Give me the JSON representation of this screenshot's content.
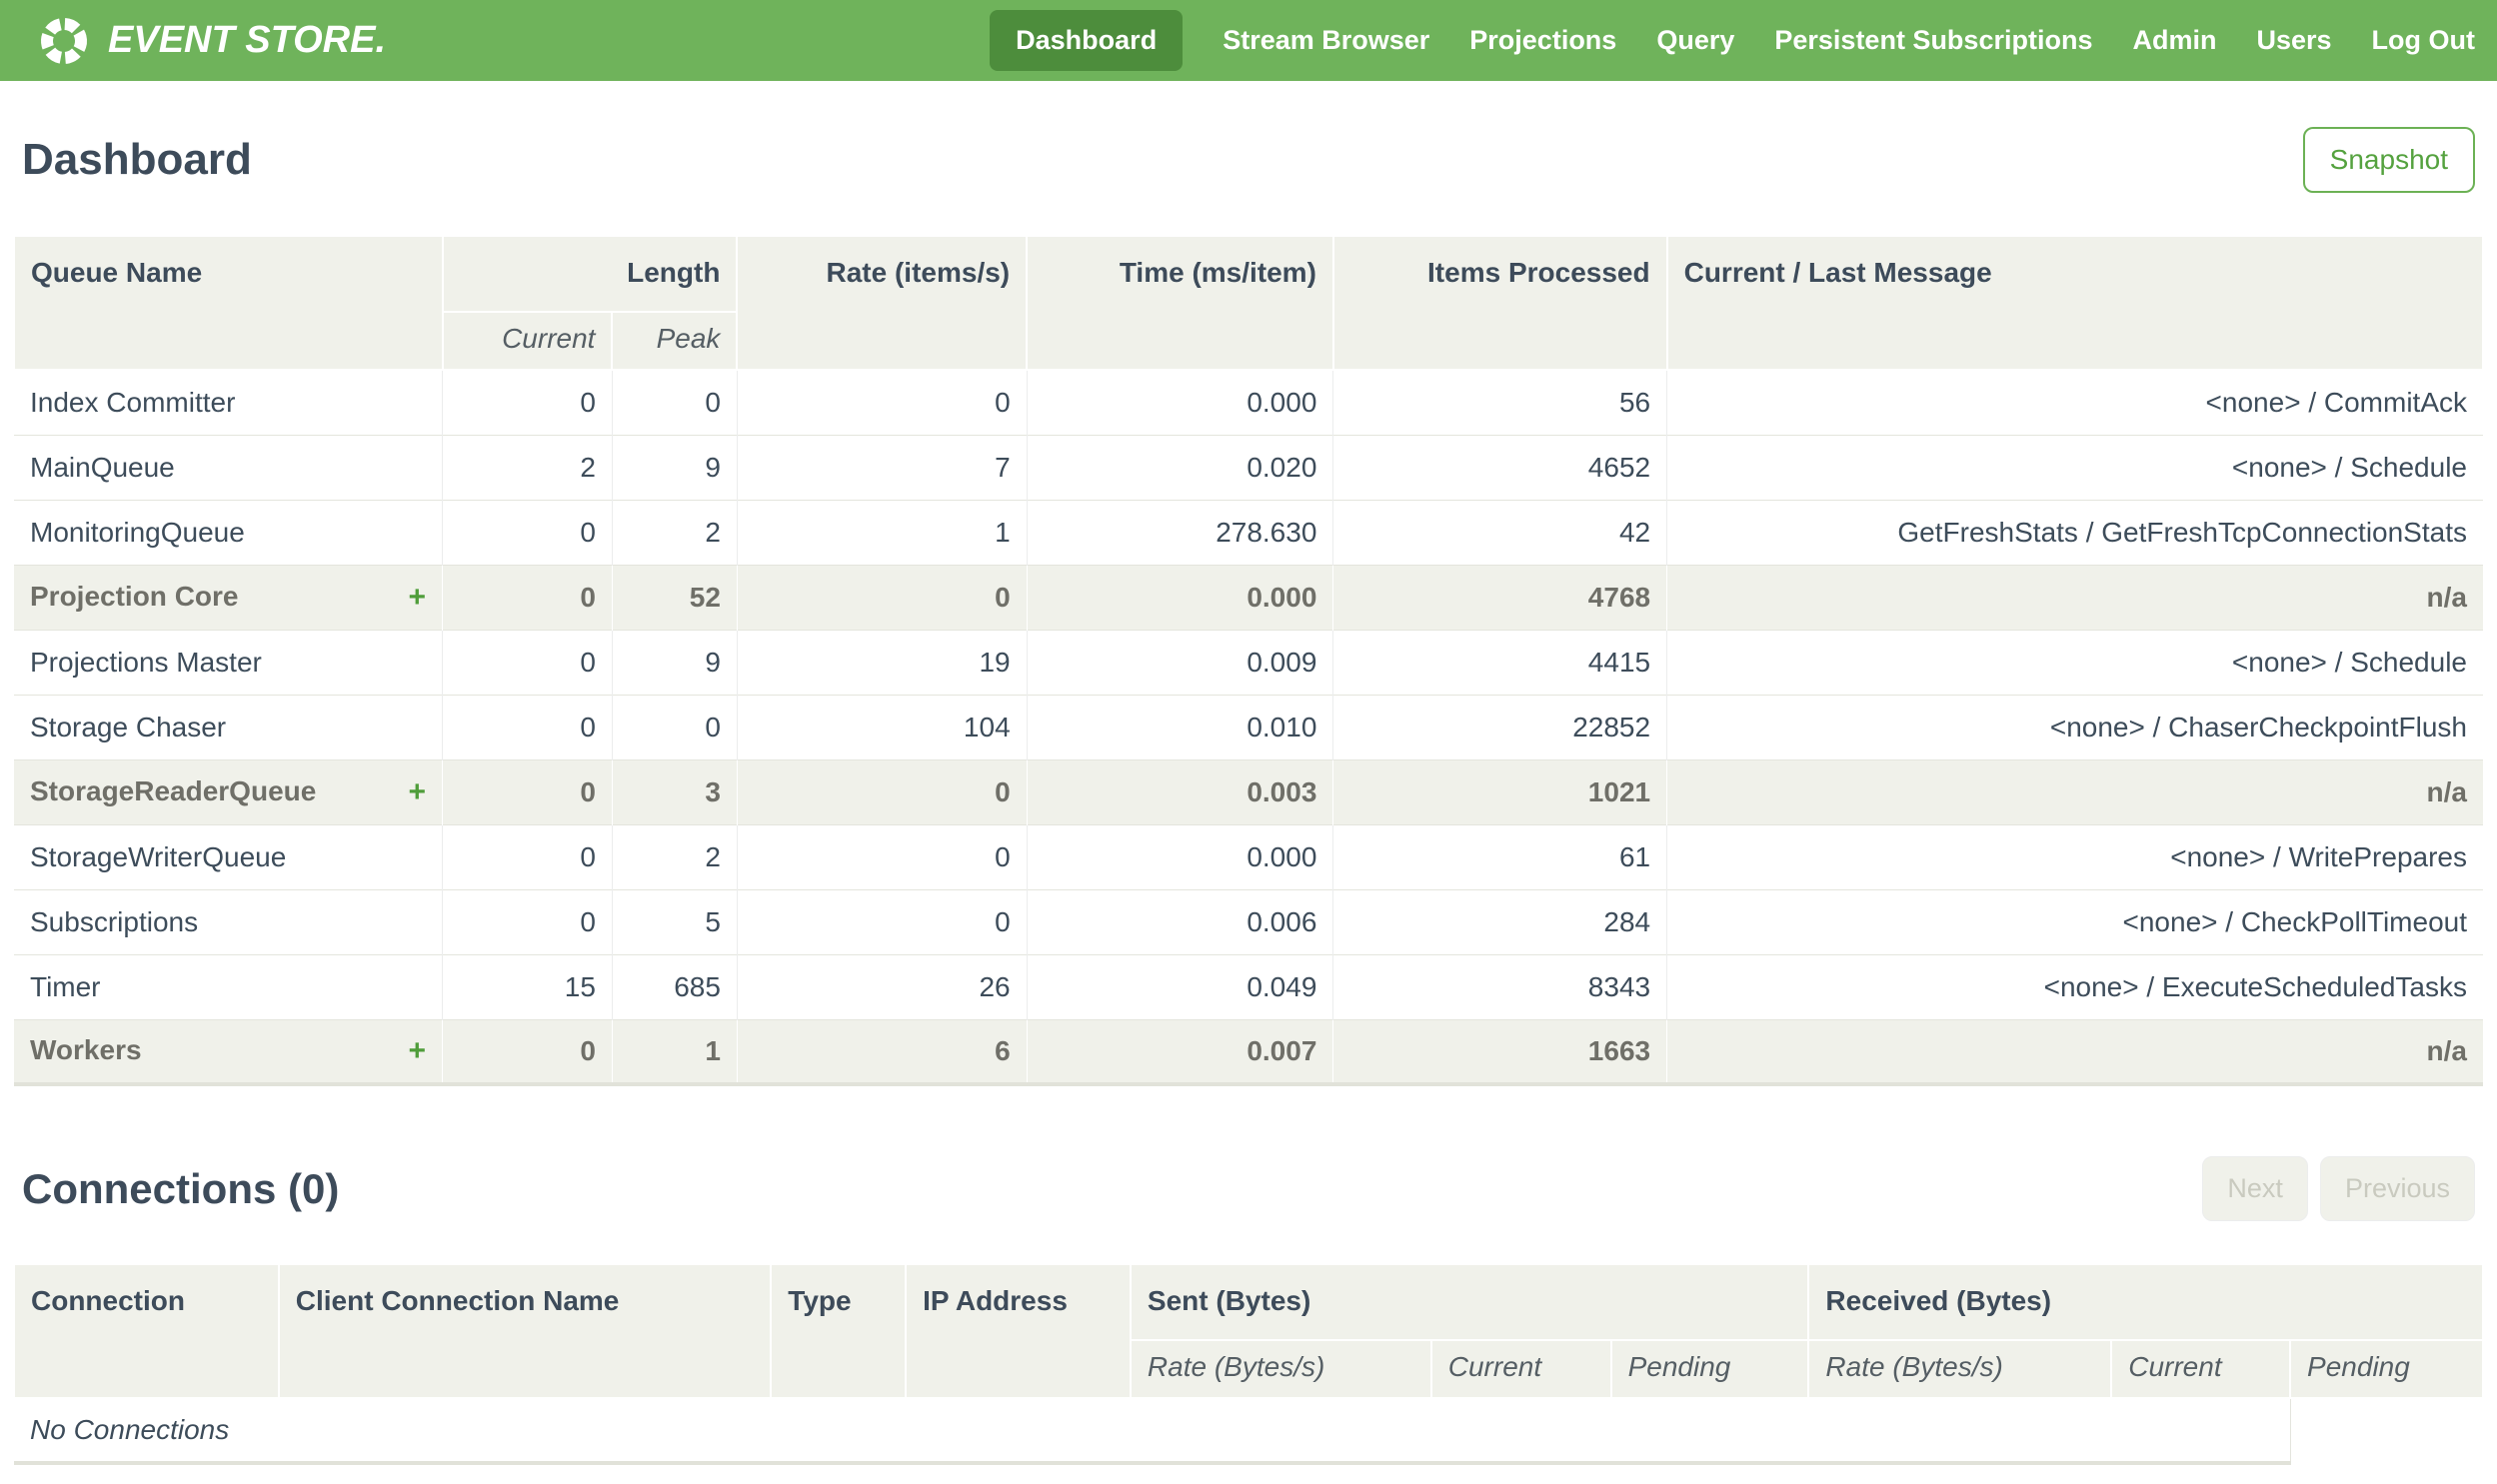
{
  "colors": {
    "navbar_green": "#6FB35B",
    "active_item_green": "#4D8D3C",
    "accent_green": "#55A23F",
    "header_bg": "#F0F1EA",
    "text_dark": "#3D4C5A"
  },
  "navbar": {
    "brand": "EVENT STORE.",
    "items": [
      {
        "label": "Dashboard",
        "active": true
      },
      {
        "label": "Stream Browser",
        "active": false
      },
      {
        "label": "Projections",
        "active": false
      },
      {
        "label": "Query",
        "active": false
      },
      {
        "label": "Persistent Subscriptions",
        "active": false
      },
      {
        "label": "Admin",
        "active": false
      },
      {
        "label": "Users",
        "active": false
      },
      {
        "label": "Log Out",
        "active": false
      }
    ]
  },
  "dashboard": {
    "title": "Dashboard",
    "snapshot_label": "Snapshot"
  },
  "queue_table": {
    "expand_icon": "+",
    "headers": {
      "queue_name": "Queue Name",
      "length": "Length",
      "current": "Current",
      "peak": "Peak",
      "rate": "Rate (items/s)",
      "time": "Time (ms/item)",
      "items_processed": "Items Processed",
      "message": "Current / Last Message"
    },
    "rows": [
      {
        "name": "Index Committer",
        "expandable": false,
        "highlighted": false,
        "current": "0",
        "peak": "0",
        "rate": "0",
        "time": "0.000",
        "items": "56",
        "message": "<none> / CommitAck"
      },
      {
        "name": "MainQueue",
        "expandable": false,
        "highlighted": false,
        "current": "2",
        "peak": "9",
        "rate": "7",
        "time": "0.020",
        "items": "4652",
        "message": "<none> / Schedule"
      },
      {
        "name": "MonitoringQueue",
        "expandable": false,
        "highlighted": false,
        "current": "0",
        "peak": "2",
        "rate": "1",
        "time": "278.630",
        "items": "42",
        "message": "GetFreshStats / GetFreshTcpConnectionStats"
      },
      {
        "name": "Projection Core",
        "expandable": true,
        "highlighted": true,
        "current": "0",
        "peak": "52",
        "rate": "0",
        "time": "0.000",
        "items": "4768",
        "message": "n/a"
      },
      {
        "name": "Projections Master",
        "expandable": false,
        "highlighted": false,
        "current": "0",
        "peak": "9",
        "rate": "19",
        "time": "0.009",
        "items": "4415",
        "message": "<none> / Schedule"
      },
      {
        "name": "Storage Chaser",
        "expandable": false,
        "highlighted": false,
        "current": "0",
        "peak": "0",
        "rate": "104",
        "time": "0.010",
        "items": "22852",
        "message": "<none> / ChaserCheckpointFlush"
      },
      {
        "name": "StorageReaderQueue",
        "expandable": true,
        "highlighted": true,
        "current": "0",
        "peak": "3",
        "rate": "0",
        "time": "0.003",
        "items": "1021",
        "message": "n/a"
      },
      {
        "name": "StorageWriterQueue",
        "expandable": false,
        "highlighted": false,
        "current": "0",
        "peak": "2",
        "rate": "0",
        "time": "0.000",
        "items": "61",
        "message": "<none> / WritePrepares"
      },
      {
        "name": "Subscriptions",
        "expandable": false,
        "highlighted": false,
        "current": "0",
        "peak": "5",
        "rate": "0",
        "time": "0.006",
        "items": "284",
        "message": "<none> / CheckPollTimeout"
      },
      {
        "name": "Timer",
        "expandable": false,
        "highlighted": false,
        "current": "15",
        "peak": "685",
        "rate": "26",
        "time": "0.049",
        "items": "8343",
        "message": "<none> / ExecuteScheduledTasks"
      },
      {
        "name": "Workers",
        "expandable": true,
        "highlighted": true,
        "current": "0",
        "peak": "1",
        "rate": "6",
        "time": "0.007",
        "items": "1663",
        "message": "n/a"
      }
    ]
  },
  "connections": {
    "title": "Connections (0)",
    "next_label": "Next",
    "previous_label": "Previous",
    "headers": {
      "connection": "Connection",
      "client_connection_name": "Client Connection Name",
      "type": "Type",
      "ip_address": "IP Address",
      "sent": "Sent (Bytes)",
      "received": "Received (Bytes)",
      "rate": "Rate (Bytes/s)",
      "current": "Current",
      "pending": "Pending"
    },
    "empty_message": "No Connections"
  }
}
